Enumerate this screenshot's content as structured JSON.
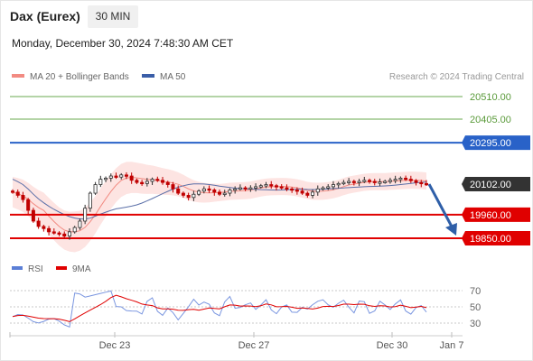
{
  "header": {
    "title": "Dax (Eurex)",
    "timeframe": "30 MIN",
    "timestamp": "Monday, December 30, 2024 7:48:30 AM CET"
  },
  "legend": {
    "items": [
      {
        "label": "MA 20 + Bollinger Bands",
        "color": "#f28b82"
      },
      {
        "label": "MA 50",
        "color": "#3a5ea8"
      }
    ],
    "credit": "Research © 2024 Trading Central"
  },
  "rsi_legend": {
    "items": [
      {
        "label": "RSI",
        "color": "#5b7fd6"
      },
      {
        "label": "9MA",
        "color": "#e00000"
      }
    ]
  },
  "chart_data": [
    {
      "type": "candlestick",
      "levels": [
        {
          "value": "20510.00",
          "kind": "target",
          "color": "#6aa84f"
        },
        {
          "value": "20405.00",
          "kind": "target",
          "color": "#6aa84f"
        },
        {
          "value": "20295.00",
          "kind": "pivot",
          "color": "#2962c8"
        },
        {
          "value": "20102.00",
          "kind": "last",
          "color": "#333333"
        },
        {
          "value": "19960.00",
          "kind": "support",
          "color": "#e00000"
        },
        {
          "value": "19850.00",
          "kind": "support",
          "color": "#e00000"
        }
      ],
      "x_ticks": [
        "Dec 23",
        "Dec 27",
        "Dec 30",
        "Jan 7"
      ],
      "forecast": "down",
      "approx_ohlc_close": [
        20065,
        20050,
        20030,
        19980,
        19930,
        19905,
        19895,
        19880,
        19875,
        19870,
        19860,
        19880,
        19900,
        19930,
        19990,
        20060,
        20100,
        20125,
        20130,
        20140,
        20135,
        20145,
        20140,
        20120,
        20110,
        20105,
        20115,
        20125,
        20120,
        20110,
        20100,
        20080,
        20060,
        20050,
        20040,
        20055,
        20070,
        20080,
        20075,
        20065,
        20055,
        20060,
        20075,
        20080,
        20085,
        20080,
        20085,
        20090,
        20095,
        20100,
        20095,
        20090,
        20085,
        20080,
        20075,
        20070,
        20060,
        20050,
        20065,
        20080,
        20085,
        20090,
        20100,
        20105,
        20110,
        20115,
        20110,
        20115,
        20120,
        20115,
        20110,
        20112,
        20115,
        20120,
        20125,
        20130,
        20125,
        20118,
        20110,
        20105,
        20102
      ]
    },
    {
      "type": "line",
      "series": [
        {
          "name": "RSI"
        },
        {
          "name": "9MA"
        }
      ],
      "y_ticks": [
        70,
        50,
        30
      ],
      "x_ticks": [
        "Dec 23",
        "Dec 27",
        "Dec 30",
        "Jan 7"
      ]
    }
  ]
}
